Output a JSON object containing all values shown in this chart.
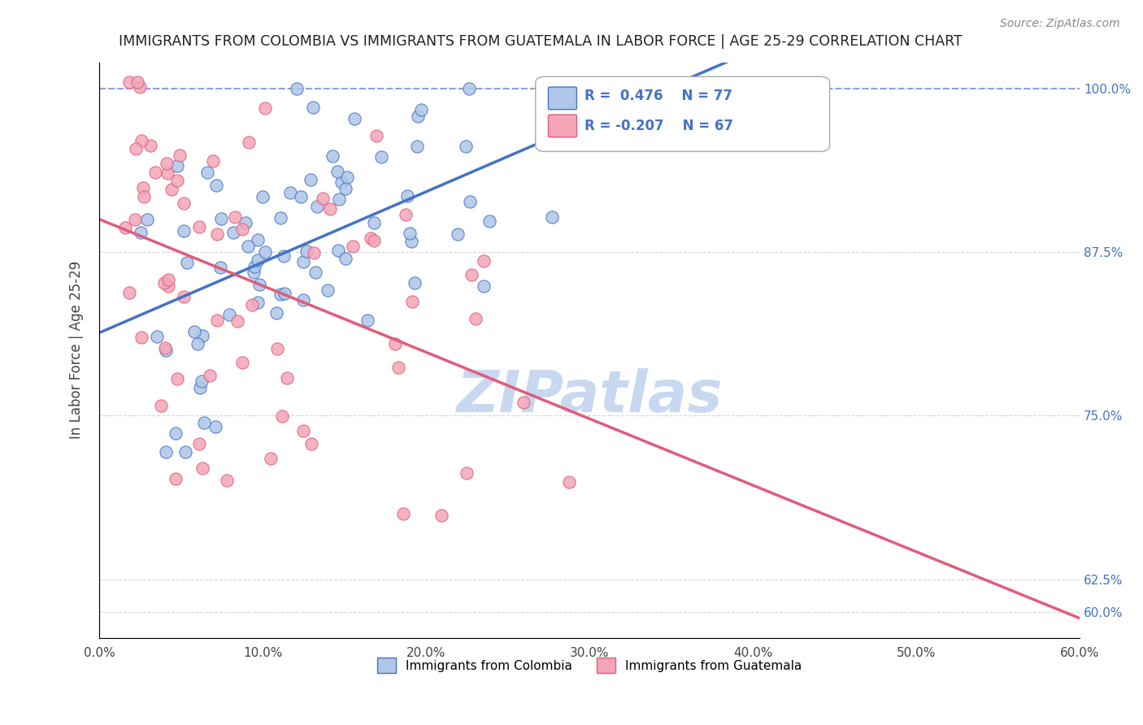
{
  "title": "IMMIGRANTS FROM COLOMBIA VS IMMIGRANTS FROM GUATEMALA IN LABOR FORCE | AGE 25-29 CORRELATION CHART",
  "source": "Source: ZipAtlas.com",
  "ylabel": "In Labor Force | Age 25-29",
  "xlabel_ticks": [
    "0.0%",
    "10.0%",
    "20.0%",
    "30.0%",
    "40.0%",
    "50.0%",
    "60.0%"
  ],
  "xlabel_vals": [
    0.0,
    0.1,
    0.2,
    0.3,
    0.4,
    0.5,
    0.6
  ],
  "ylabel_ticks": [
    "60.0%",
    "62.5%",
    "75.0%",
    "87.5%",
    "100.0%"
  ],
  "ylabel_vals": [
    0.6,
    0.625,
    0.75,
    0.875,
    1.0
  ],
  "xlim": [
    0.0,
    0.6
  ],
  "ylim": [
    0.58,
    1.02
  ],
  "colombia_R": 0.476,
  "colombia_N": 77,
  "guatemala_R": -0.207,
  "guatemala_N": 67,
  "colombia_color": "#aec6e8",
  "colombia_line_color": "#4472c4",
  "guatemala_color": "#f4a6b8",
  "guatemala_line_color": "#e05c7a",
  "legend_colombia": "Immigrants from Colombia",
  "legend_guatemala": "Immigrants from Guatemala",
  "colombia_seed": 42,
  "guatemala_seed": 99,
  "watermark": "ZIPatlas",
  "watermark_color": "#c8d8f0",
  "grid_color": "#cccccc",
  "title_color": "#222222",
  "right_tick_color": "#4472c4"
}
